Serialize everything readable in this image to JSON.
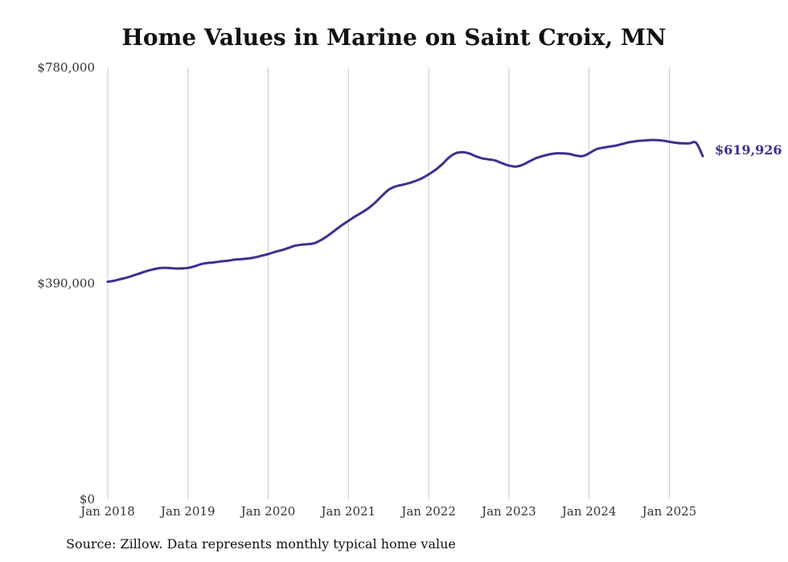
{
  "chart_data": {
    "type": "line",
    "title": "Home Values in Marine on Saint Croix, MN",
    "xlabel": "",
    "ylabel": "",
    "ylim": [
      0,
      780000
    ],
    "y_ticks": [
      {
        "value": 0,
        "label": "$0"
      },
      {
        "value": 390000,
        "label": "$390,000"
      },
      {
        "value": 780000,
        "label": "$780,000"
      }
    ],
    "x_ticks": [
      {
        "value": "2018-01",
        "label": "Jan 2018"
      },
      {
        "value": "2019-01",
        "label": "Jan 2019"
      },
      {
        "value": "2020-01",
        "label": "Jan 2020"
      },
      {
        "value": "2021-01",
        "label": "Jan 2021"
      },
      {
        "value": "2022-01",
        "label": "Jan 2022"
      },
      {
        "value": "2023-01",
        "label": "Jan 2023"
      },
      {
        "value": "2024-01",
        "label": "Jan 2024"
      },
      {
        "value": "2025-01",
        "label": "Jan 2025"
      }
    ],
    "grid": "vertical",
    "color": "#3b3191",
    "end_label": "$619,926",
    "series": [
      {
        "x": [
          "2018-01",
          "2018-02",
          "2018-03",
          "2018-04",
          "2018-05",
          "2018-06",
          "2018-07",
          "2018-08",
          "2018-09",
          "2018-10",
          "2018-11",
          "2018-12",
          "2019-01",
          "2019-02",
          "2019-03",
          "2019-04",
          "2019-05",
          "2019-06",
          "2019-07",
          "2019-08",
          "2019-09",
          "2019-10",
          "2019-11",
          "2019-12",
          "2020-01",
          "2020-02",
          "2020-03",
          "2020-04",
          "2020-05",
          "2020-06",
          "2020-07",
          "2020-08",
          "2020-09",
          "2020-10",
          "2020-11",
          "2020-12",
          "2021-01",
          "2021-02",
          "2021-03",
          "2021-04",
          "2021-05",
          "2021-06",
          "2021-07",
          "2021-08",
          "2021-09",
          "2021-10",
          "2021-11",
          "2021-12",
          "2022-01",
          "2022-02",
          "2022-03",
          "2022-04",
          "2022-05",
          "2022-06",
          "2022-07",
          "2022-08",
          "2022-09",
          "2022-10",
          "2022-11",
          "2022-12",
          "2023-01",
          "2023-02",
          "2023-03",
          "2023-04",
          "2023-05",
          "2023-06",
          "2023-07",
          "2023-08",
          "2023-09",
          "2023-10",
          "2023-11",
          "2023-12",
          "2024-01",
          "2024-02",
          "2024-03",
          "2024-04",
          "2024-05",
          "2024-06",
          "2024-07",
          "2024-08",
          "2024-09",
          "2024-10",
          "2024-11",
          "2024-12",
          "2025-01",
          "2025-02",
          "2025-03",
          "2025-04",
          "2025-05",
          "2025-06"
        ],
        "values": [
          393000,
          395000,
          398000,
          401000,
          405000,
          409000,
          413000,
          416000,
          418000,
          418000,
          417000,
          417000,
          418000,
          421000,
          425000,
          427000,
          428000,
          430000,
          431000,
          433000,
          434000,
          435000,
          437000,
          440000,
          443000,
          447000,
          450000,
          454000,
          458000,
          460000,
          461000,
          463000,
          469000,
          477000,
          486000,
          495000,
          503000,
          511000,
          518000,
          526000,
          536000,
          548000,
          559000,
          565000,
          568000,
          571000,
          575000,
          580000,
          587000,
          595000,
          605000,
          617000,
          625000,
          627000,
          625000,
          620000,
          616000,
          614000,
          612000,
          607000,
          603000,
          601000,
          604000,
          610000,
          616000,
          620000,
          623000,
          625000,
          625000,
          624000,
          621000,
          620000,
          625000,
          632000,
          635000,
          637000,
          639000,
          642000,
          645000,
          647000,
          648000,
          649000,
          649000,
          648000,
          646000,
          644000,
          643000,
          643000,
          644000,
          619926
        ]
      }
    ]
  },
  "source_note": "Source: Zillow. Data represents monthly typical home value"
}
